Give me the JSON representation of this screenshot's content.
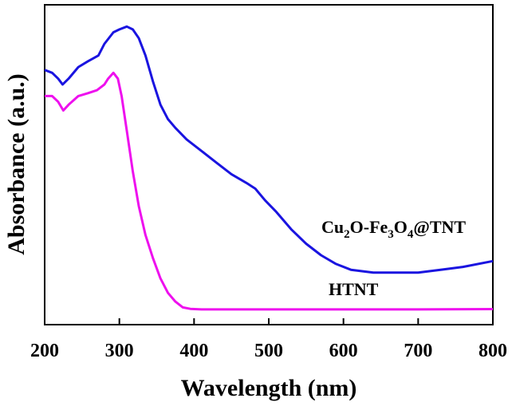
{
  "chart_data": {
    "type": "line",
    "xlabel": "Wavelength (nm)",
    "ylabel": "Absorbance (a.u.)",
    "xlim": [
      200,
      800
    ],
    "ylim": [
      0,
      1.0
    ],
    "x_ticks": [
      "200",
      "300",
      "400",
      "500",
      "600",
      "700",
      "800"
    ],
    "y_ticks_labeled": false,
    "grid": false,
    "legend": "inline labels near curves",
    "series": [
      {
        "name_parts": [
          "Cu",
          "2",
          "O-Fe",
          "3",
          "O",
          "4",
          "@TNT"
        ],
        "color": "#1a14e0",
        "x": [
          200,
          210,
          218,
          224,
          232,
          245,
          258,
          265,
          272,
          280,
          292,
          300,
          310,
          318,
          326,
          335,
          345,
          355,
          365,
          375,
          390,
          410,
          430,
          450,
          470,
          482,
          495,
          510,
          530,
          550,
          570,
          590,
          610,
          640,
          670,
          700,
          730,
          760,
          800
        ],
        "values": [
          0.83,
          0.82,
          0.8,
          0.78,
          0.8,
          0.84,
          0.86,
          0.87,
          0.88,
          0.92,
          0.96,
          0.97,
          0.98,
          0.97,
          0.94,
          0.88,
          0.79,
          0.71,
          0.66,
          0.63,
          0.59,
          0.55,
          0.51,
          0.47,
          0.44,
          0.42,
          0.38,
          0.34,
          0.28,
          0.23,
          0.19,
          0.16,
          0.14,
          0.13,
          0.13,
          0.13,
          0.14,
          0.15,
          0.17
        ]
      },
      {
        "name": "HTNT",
        "color": "#ee10ee",
        "x": [
          200,
          210,
          218,
          225,
          232,
          245,
          258,
          270,
          280,
          285,
          292,
          298,
          303,
          310,
          318,
          326,
          335,
          345,
          355,
          365,
          375,
          385,
          395,
          410,
          450,
          500,
          600,
          700,
          800
        ],
        "values": [
          0.74,
          0.74,
          0.72,
          0.69,
          0.71,
          0.74,
          0.75,
          0.76,
          0.78,
          0.8,
          0.82,
          0.8,
          0.74,
          0.62,
          0.48,
          0.36,
          0.26,
          0.18,
          0.11,
          0.06,
          0.03,
          0.01,
          0.005,
          0.003,
          0.003,
          0.003,
          0.003,
          0.003,
          0.004
        ]
      }
    ],
    "annotations": [
      "HTNT"
    ]
  }
}
